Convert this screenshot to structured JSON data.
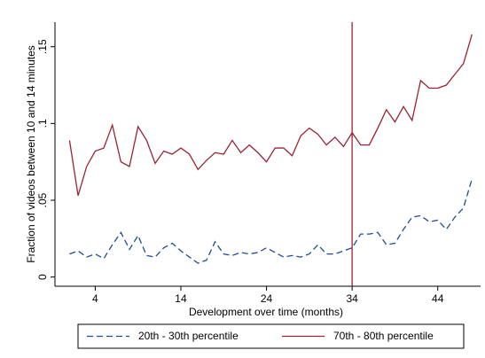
{
  "chart_data": {
    "type": "line",
    "x_label": "Development over time (months)",
    "y_label": "Fraction of videos between 10 and 14 minutes",
    "x": [
      1,
      2,
      3,
      4,
      5,
      6,
      7,
      8,
      9,
      10,
      11,
      12,
      13,
      14,
      15,
      16,
      17,
      18,
      19,
      20,
      21,
      22,
      23,
      24,
      25,
      26,
      27,
      28,
      29,
      30,
      31,
      32,
      33,
      34,
      35,
      36,
      37,
      38,
      39,
      40,
      41,
      42,
      43,
      44,
      45,
      46,
      47,
      48
    ],
    "series": [
      {
        "name": "20th - 30th percentile",
        "color": "#1f4e8c",
        "dash": true,
        "values": [
          0.015,
          0.017,
          0.013,
          0.015,
          0.012,
          0.021,
          0.029,
          0.018,
          0.027,
          0.014,
          0.013,
          0.019,
          0.022,
          0.017,
          0.013,
          0.009,
          0.011,
          0.023,
          0.015,
          0.014,
          0.016,
          0.015,
          0.016,
          0.019,
          0.016,
          0.013,
          0.014,
          0.013,
          0.015,
          0.021,
          0.015,
          0.015,
          0.017,
          0.019,
          0.028,
          0.028,
          0.029,
          0.021,
          0.022,
          0.031,
          0.039,
          0.04,
          0.036,
          0.037,
          0.031,
          0.039,
          0.045,
          0.064
        ]
      },
      {
        "name": "70th - 80th percentile",
        "color": "#9b2335",
        "dash": false,
        "values": [
          0.089,
          0.053,
          0.072,
          0.082,
          0.084,
          0.099,
          0.075,
          0.072,
          0.098,
          0.089,
          0.074,
          0.082,
          0.08,
          0.084,
          0.08,
          0.07,
          0.076,
          0.081,
          0.08,
          0.089,
          0.081,
          0.086,
          0.081,
          0.075,
          0.084,
          0.084,
          0.079,
          0.092,
          0.097,
          0.093,
          0.086,
          0.091,
          0.085,
          0.094,
          0.086,
          0.086,
          0.097,
          0.109,
          0.101,
          0.111,
          0.102,
          0.128,
          0.123,
          0.123,
          0.125,
          0.132,
          0.139,
          0.158
        ]
      }
    ],
    "vline": 34,
    "vline_color": "#9b2335",
    "xlim": [
      -0.7,
      49
    ],
    "xticks": [
      4,
      14,
      24,
      34,
      44
    ],
    "ylim": [
      -0.006,
      0.166
    ],
    "yticks": [
      0,
      {
        "value": 0.05,
        "label": ".05"
      },
      {
        "value": 0.1,
        "label": ".1"
      },
      {
        "value": 0.15,
        "label": ".15"
      }
    ]
  }
}
